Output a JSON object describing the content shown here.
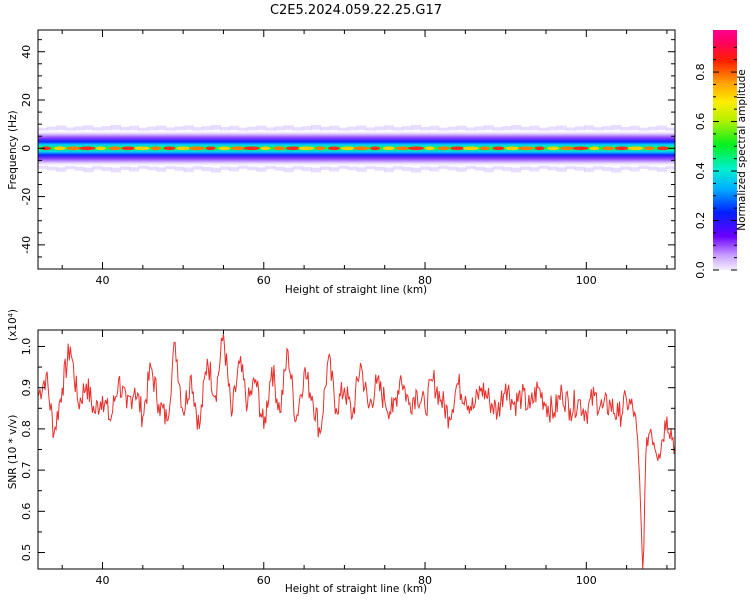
{
  "title": "C2E5.2024.059.22.25.G17",
  "colors": {
    "snr_line": "#e8302c",
    "frame": "#000000"
  },
  "chart_data": [
    {
      "type": "heatmap",
      "xlabel": "Height of straight line (km)",
      "ylabel": "Frequency (Hz)",
      "xlim": [
        32,
        111
      ],
      "ylim": [
        -50,
        49
      ],
      "xticks": [
        40,
        60,
        80,
        100
      ],
      "yticks": [
        -40,
        -20,
        0,
        20,
        40
      ],
      "colorbar": {
        "label": "Normalized spectral amplitude",
        "range": [
          0,
          0.97
        ],
        "ticks": [
          0.0,
          0.2,
          0.4,
          0.6,
          0.8
        ],
        "colormap": "rainbow (white-purple-blue-cyan-green-yellow-orange-red-pink)"
      },
      "band": {
        "center_hz": 0,
        "approx_halfwidth_hz": 3.5,
        "strongest_amplitude_near_hz": 0
      }
    },
    {
      "type": "line",
      "xlabel": "Height of straight line (km)",
      "ylabel": "SNR (10 * v/v)",
      "multiplier_label": "(x10⁴)",
      "xlim": [
        32,
        111
      ],
      "ylim": [
        0.46,
        1.04
      ],
      "xticks": [
        40,
        60,
        80,
        100
      ],
      "yticks": [
        0.5,
        0.6,
        0.7,
        0.8,
        0.9,
        1.0
      ],
      "series": [
        {
          "x": [
            32,
            33,
            34,
            35,
            36,
            37,
            38,
            39,
            40,
            41,
            42,
            43,
            44,
            45,
            46,
            47,
            48,
            49,
            50,
            51,
            52,
            53,
            54,
            55,
            56,
            57,
            58,
            59,
            60,
            61,
            62,
            63,
            64,
            65,
            66,
            67,
            68,
            69,
            70,
            71,
            72,
            73,
            74,
            75,
            76,
            77,
            78,
            79,
            80,
            81,
            82,
            83,
            84,
            85,
            86,
            87,
            88,
            89,
            90,
            91,
            92,
            93,
            94,
            95,
            96,
            97,
            98,
            99,
            100,
            101,
            102,
            103,
            104,
            105,
            106,
            106.5,
            107,
            107.5,
            108,
            109,
            110,
            111
          ],
          "y": [
            0.88,
            0.93,
            0.79,
            0.9,
            1.0,
            0.86,
            0.91,
            0.84,
            0.88,
            0.82,
            0.92,
            0.85,
            0.9,
            0.83,
            0.95,
            0.86,
            0.82,
            1.01,
            0.84,
            0.93,
            0.8,
            0.97,
            0.88,
            1.03,
            0.83,
            0.96,
            0.86,
            0.92,
            0.8,
            0.95,
            0.84,
            0.99,
            0.82,
            0.94,
            0.88,
            0.79,
            0.97,
            0.85,
            0.9,
            0.83,
            0.96,
            0.85,
            0.91,
            0.87,
            0.84,
            0.93,
            0.86,
            0.89,
            0.85,
            0.92,
            0.87,
            0.83,
            0.91,
            0.88,
            0.85,
            0.9,
            0.87,
            0.84,
            0.91,
            0.86,
            0.88,
            0.85,
            0.9,
            0.86,
            0.84,
            0.89,
            0.85,
            0.87,
            0.84,
            0.88,
            0.85,
            0.86,
            0.83,
            0.87,
            0.84,
            0.72,
            0.46,
            0.78,
            0.8,
            0.74,
            0.83,
            0.76
          ]
        }
      ]
    }
  ]
}
